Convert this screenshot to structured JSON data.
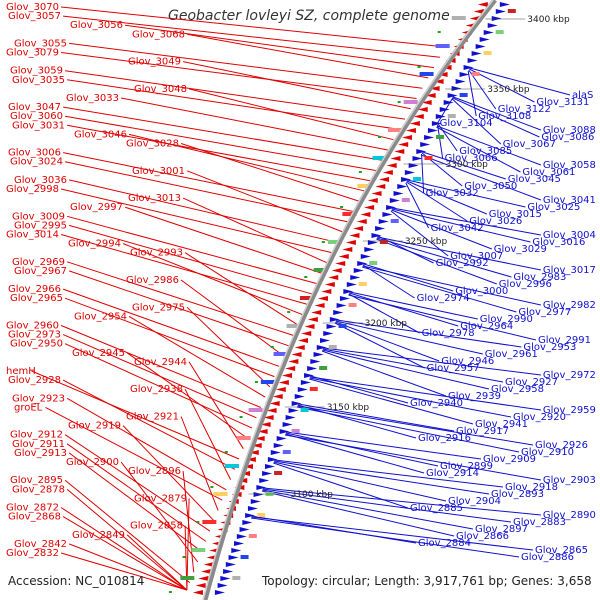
{
  "title": "Geobacter lovleyi SZ, complete genome",
  "accession": "Accession: NC_010814",
  "topology": "Topology: circular; Length: 3,917,761 bp; Genes: 3,658",
  "kbp_labels": [
    "3400 kbp",
    "3350 kbp",
    "3300 kbp",
    "3250 kbp",
    "3200 kbp",
    "3150 kbp",
    "3100 kbp"
  ],
  "colors": {
    "red": "#e00000",
    "blue": "#1010d0",
    "backbone": "#8a8a8a"
  },
  "left_labels": [
    "Glov_3070",
    "Glov_3057",
    "Glov_3056",
    "Glov_3068",
    "Glov_3055",
    "Glov_3079",
    "Glov_3049",
    "Glov_3059",
    "Glov_3035",
    "Glov_3048",
    "Glov_3033",
    "Glov_3047",
    "Glov_3060",
    "Glov_3031",
    "Glov_3046",
    "Glov_3028",
    "Glov_3006",
    "Glov_3024",
    "Glov_3001",
    "Glov_3036",
    "Glov_2998",
    "Glov_3013",
    "Glov_2997",
    "Glov_3009",
    "Glov_2995",
    "Glov_3014",
    "Glov_2994",
    "Glov_2993",
    "Glov_2969",
    "Glov_2967",
    "Glov_2986",
    "Glov_2966",
    "Glov_2965",
    "Glov_2975",
    "Glov_2954",
    "Glov_2960",
    "Glov_2973",
    "Glov_2950",
    "Glov_2945",
    "Glov_2944",
    "hemH",
    "Glov_2928",
    "Glov_2938",
    "Glov_2923",
    "groEL",
    "Glov_2921",
    "Glov_2919",
    "Glov_2912",
    "Glov_2911",
    "Glov_2913",
    "Glov_2900",
    "Glov_2896",
    "Glov_2895",
    "Glov_2878",
    "Glov_2879",
    "Glov_2872",
    "Glov_2868",
    "Glov_2858",
    "Glov_2849",
    "Glov_2842",
    "Glov_2832"
  ],
  "right_labels": [
    "alaS",
    "Glov_3131",
    "Glov_3122",
    "Glov_3108",
    "Glov_3104",
    "Glov_3088",
    "Glov_3086",
    "Glov_3067",
    "Glov_3085",
    "Glov_3066",
    "Glov_3058",
    "Glov_3061",
    "Glov_3045",
    "Glov_3050",
    "Glov_3032",
    "Glov_3041",
    "Glov_3025",
    "Glov_3015",
    "Glov_3026",
    "Glov_3042",
    "Glov_3004",
    "Glov_3016",
    "Glov_3029",
    "Glov_3007",
    "Glov_2992",
    "Glov_3017",
    "Glov_2983",
    "Glov_2996",
    "Glov_3000",
    "Glov_2974",
    "Glov_2982",
    "Glov_2977",
    "Glov_2990",
    "Glov_2964",
    "Glov_2978",
    "Glov_2991",
    "Glov_2953",
    "Glov_2961",
    "Glov_2946",
    "Glov_2957",
    "Glov_2972",
    "Glov_2927",
    "Glov_2958",
    "Glov_2939",
    "Glov_2940",
    "Glov_2959",
    "Glov_2920",
    "Glov_2941",
    "Glov_2917",
    "Glov_2916",
    "Glov_2926",
    "Glov_2910",
    "Glov_2909",
    "Glov_2899",
    "Glov_2914",
    "Glov_2903",
    "Glov_2918",
    "Glov_2893",
    "Glov_2904",
    "Glov_2885",
    "Glov_2890",
    "Glov_2883",
    "Glov_2897",
    "Glov_2866",
    "Glov_2884",
    "Glov_2865",
    "Glov_2886"
  ]
}
